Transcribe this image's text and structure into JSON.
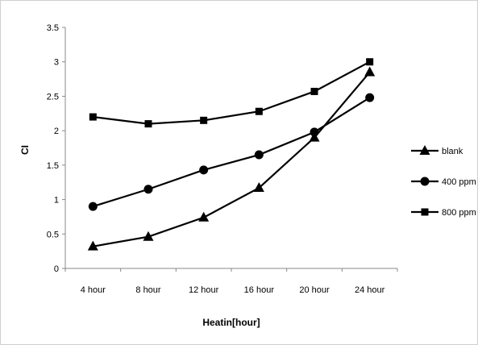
{
  "chart_data": {
    "type": "line",
    "title": "",
    "xlabel": "Heatin[hour]",
    "ylabel": "CI",
    "categories": [
      "4 hour",
      "8 hour",
      "12 hour",
      "16 hour",
      "20 hour",
      "24 hour"
    ],
    "ylim": [
      0,
      3.5
    ],
    "yticks": [
      0,
      0.5,
      1,
      1.5,
      2,
      2.5,
      3,
      3.5
    ],
    "ytick_labels": [
      "0",
      "0.5",
      "1",
      "1.5",
      "2",
      "2.5",
      "3",
      "3.5"
    ],
    "grid": false,
    "legend_position": "right",
    "line_color": "#000000",
    "series": [
      {
        "name": "blank",
        "marker": "triangle",
        "values": [
          0.32,
          0.46,
          0.74,
          1.17,
          1.9,
          2.85
        ]
      },
      {
        "name": "400 ppm",
        "marker": "circle",
        "values": [
          0.9,
          1.15,
          1.43,
          1.65,
          1.98,
          2.48
        ]
      },
      {
        "name": "800 ppm",
        "marker": "square",
        "values": [
          2.2,
          2.1,
          2.15,
          2.28,
          2.57,
          3.0
        ]
      }
    ]
  }
}
